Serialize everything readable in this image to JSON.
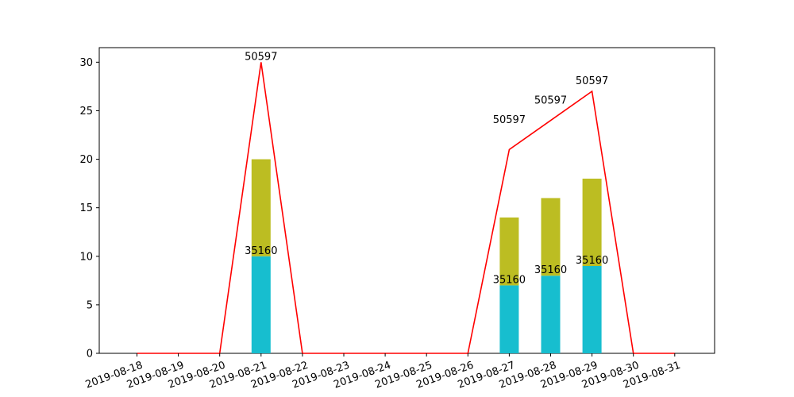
{
  "chart_data": {
    "type": "bar",
    "categories": [
      "2019-08-18",
      "2019-08-19",
      "2019-08-20",
      "2019-08-21",
      "2019-08-22",
      "2019-08-23",
      "2019-08-24",
      "2019-08-25",
      "2019-08-26",
      "2019-08-27",
      "2019-08-28",
      "2019-08-29",
      "2019-08-30",
      "2019-08-31"
    ],
    "series": [
      {
        "kind": "bar",
        "color": "#17becf",
        "stack": 0,
        "values": [
          null,
          null,
          null,
          10,
          null,
          null,
          null,
          null,
          null,
          7,
          8,
          9,
          null,
          null
        ]
      },
      {
        "kind": "bar",
        "color": "#bcbd22",
        "stack": 1,
        "values": [
          null,
          null,
          null,
          10,
          null,
          null,
          null,
          null,
          null,
          7,
          8,
          9,
          null,
          null
        ]
      },
      {
        "kind": "line",
        "color": "#ff0000",
        "values": [
          0,
          0,
          0,
          30,
          0,
          0,
          0,
          0,
          0,
          21,
          24,
          27,
          0,
          0
        ]
      }
    ],
    "bar_labels": [
      {
        "category": "2019-08-21",
        "text": "35160",
        "y": 10
      },
      {
        "category": "2019-08-27",
        "text": "35160",
        "y": 7
      },
      {
        "category": "2019-08-28",
        "text": "35160",
        "y": 8
      },
      {
        "category": "2019-08-29",
        "text": "35160",
        "y": 9
      }
    ],
    "line_labels": [
      {
        "category": "2019-08-21",
        "text": "50597",
        "y": 30
      },
      {
        "category": "2019-08-27",
        "text": "50597",
        "y": 23.5
      },
      {
        "category": "2019-08-28",
        "text": "50597",
        "y": 25.5
      },
      {
        "category": "2019-08-29",
        "text": "50597",
        "y": 27.5
      }
    ],
    "yticks": [
      0,
      5,
      10,
      15,
      20,
      25,
      30
    ],
    "ylim": [
      0,
      31.5
    ],
    "grid": false,
    "title": "",
    "xlabel": "",
    "ylabel": ""
  }
}
